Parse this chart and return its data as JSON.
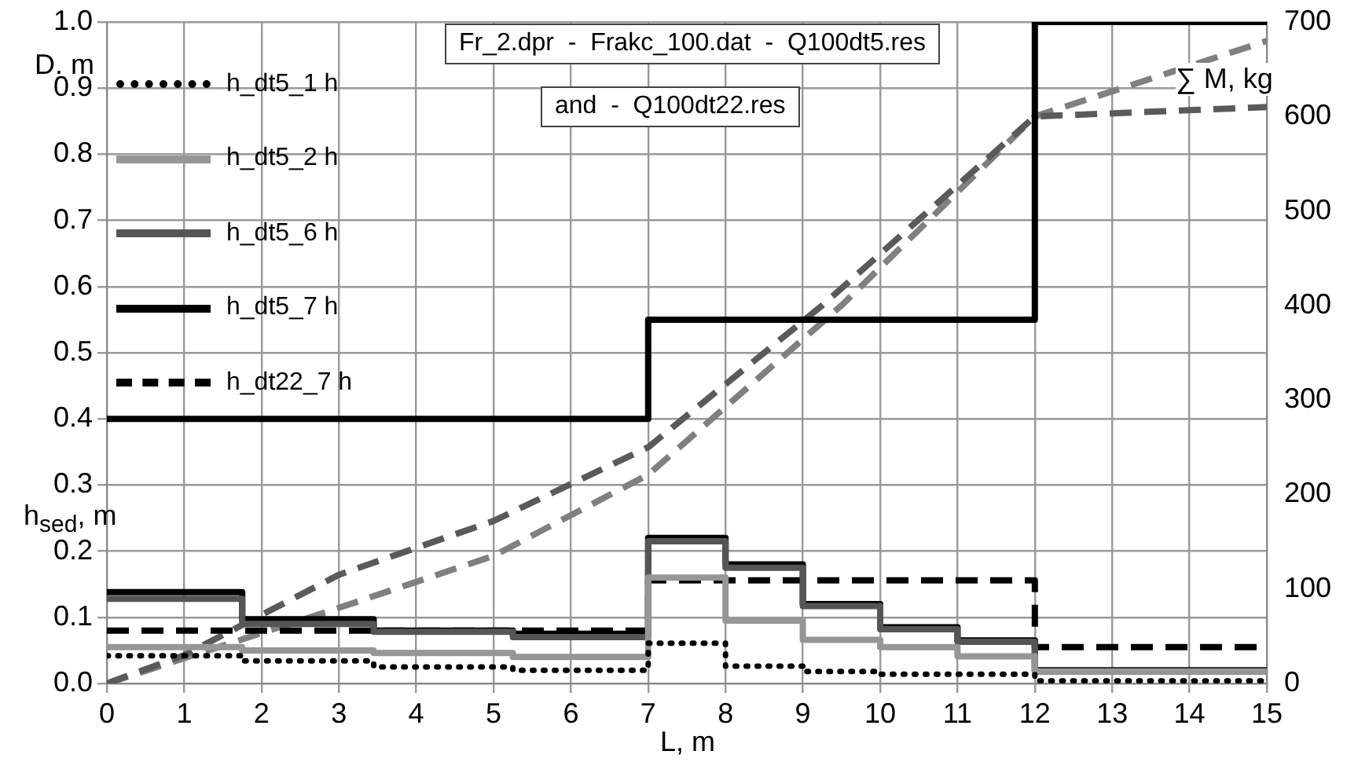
{
  "chart_data": {
    "type": "step",
    "xlabel": "L, m",
    "ylabel": "D. m",
    "y2label": "∑ M, kg",
    "annotations": [
      "Fr_2.dpr  -  Frakc_100.dat  -  Q100dt5.res",
      "and  -  Q100dt22.res",
      "h$_{sed}$, m"
    ],
    "xlim": [
      0,
      15
    ],
    "xticks": [
      0,
      1,
      2,
      3,
      4,
      5,
      6,
      7,
      8,
      9,
      10,
      11,
      12,
      13,
      14,
      15
    ],
    "ylim": [
      0,
      1
    ],
    "yticks": [
      {
        "value": 0,
        "label": "0.0"
      },
      0.1,
      0.2,
      0.3,
      0.4,
      0.5,
      0.6,
      0.7,
      0.8,
      0.9,
      {
        "value": 1,
        "label": "1.0"
      }
    ],
    "y2lim": [
      0,
      700
    ],
    "y2ticks": [
      0,
      100,
      200,
      300,
      400,
      500,
      600,
      700
    ],
    "grid": true,
    "legend": "top left",
    "series": [
      {
        "name": "h_dt5_1 h",
        "color": "#000000",
        "line_style": "dotted",
        "x": [
          0,
          1.75,
          3.45,
          5.25,
          7,
          8,
          9,
          10,
          11,
          12,
          15
        ],
        "values": [
          0.042,
          0.034,
          0.025,
          0.02,
          0.061,
          0.026,
          0.018,
          0.014,
          0.014,
          0.004,
          0.004
        ]
      },
      {
        "name": "h_dt5_2 h",
        "color": "#969696",
        "line_style": "solid",
        "x": [
          0,
          1.75,
          3.45,
          5.25,
          7,
          8,
          9,
          10,
          11,
          12,
          15
        ],
        "values": [
          0.055,
          0.05,
          0.046,
          0.04,
          0.16,
          0.095,
          0.066,
          0.055,
          0.041,
          0.018,
          0.018
        ]
      },
      {
        "name": "h_dt5_6 h",
        "color": "#555555",
        "line_style": "solid",
        "x": [
          0,
          1.75,
          3.45,
          5.25,
          7,
          8,
          9,
          10,
          11,
          12,
          15
        ],
        "values": [
          0.128,
          0.09,
          0.078,
          0.07,
          0.215,
          0.175,
          0.117,
          0.082,
          0.063,
          0.018,
          0.018
        ]
      },
      {
        "name": "h_dt5_7 h",
        "color": "#000000",
        "line_style": "solid",
        "x": [
          0,
          1.75,
          3.45,
          5.25,
          7,
          8,
          9,
          10,
          11,
          12,
          15
        ],
        "values": [
          0.138,
          0.097,
          0.08,
          0.075,
          0.22,
          0.18,
          0.12,
          0.085,
          0.065,
          0.02,
          0.02
        ]
      },
      {
        "name": "h_dt22_7 h",
        "color": "#000000",
        "line_style": "dashed",
        "x": [
          0,
          7,
          12,
          15
        ],
        "values": [
          0.08,
          0.156,
          0.055,
          0.055
        ]
      },
      {
        "color": "#000000",
        "line_style": "solid",
        "x": [
          0,
          7,
          12,
          15
        ],
        "values": [
          0.4,
          0.55,
          1.0,
          1.0
        ]
      },
      {
        "type": "line",
        "axis": "y2",
        "color": "#5a5a5a",
        "line_style": "dashed",
        "x": [
          0,
          1,
          3,
          5,
          7,
          9.25,
          12,
          15
        ],
        "values": [
          0,
          30,
          115,
          172,
          250,
          400,
          600,
          610
        ]
      },
      {
        "type": "line",
        "axis": "y2",
        "color": "#808080",
        "line_style": "dashed",
        "x": [
          0,
          3,
          5,
          7,
          9.5,
          12,
          15
        ],
        "values": [
          0,
          80,
          135,
          221,
          400,
          600,
          680
        ]
      }
    ]
  }
}
